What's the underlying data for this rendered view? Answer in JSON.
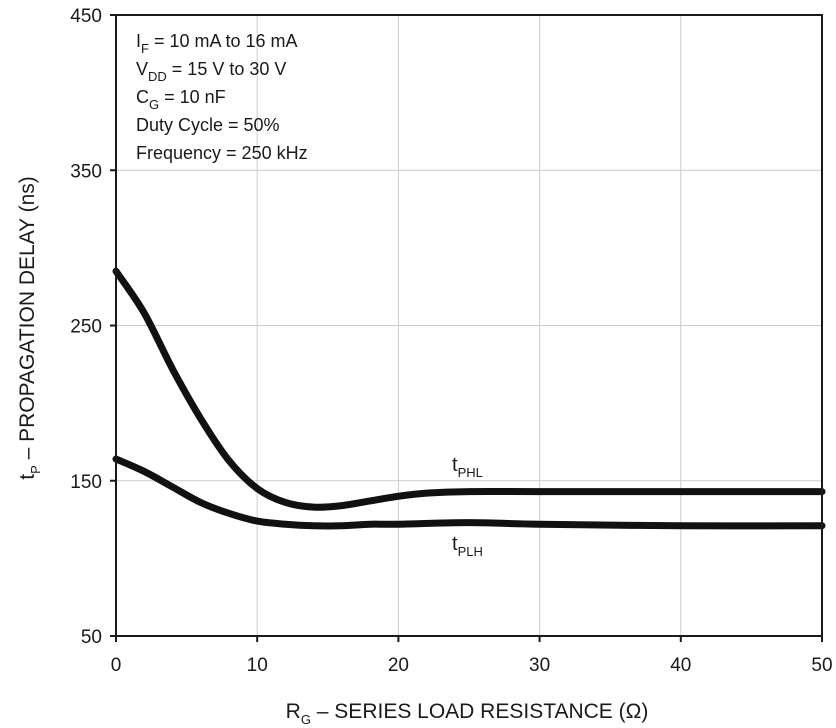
{
  "chart_data": {
    "type": "line",
    "xlabel": {
      "main": "R",
      "sub": "G",
      "rest": " – SERIES LOAD RESISTANCE (Ω)"
    },
    "ylabel": {
      "main": "t",
      "sub": "P",
      "rest": " – PROPAGATION DELAY (ns)"
    },
    "xlim": [
      0,
      50
    ],
    "ylim": [
      50,
      450
    ],
    "x_ticks": [
      "0",
      "10",
      "20",
      "30",
      "40",
      "50"
    ],
    "y_ticks": [
      "450",
      "350",
      "250",
      "150",
      "50"
    ],
    "grid": true,
    "conditions": [
      {
        "pre": "I",
        "sub": "F",
        "post": " = 10 mA to 16 mA"
      },
      {
        "pre": "V",
        "sub": "DD",
        "post": " = 15 V to 30 V"
      },
      {
        "pre": "C",
        "sub": "G",
        "post": " = 10 nF"
      },
      {
        "pre": "Duty Cycle = 50%",
        "sub": "",
        "post": ""
      },
      {
        "pre": "Frequency = 250 kHz",
        "sub": "",
        "post": ""
      }
    ],
    "series": [
      {
        "name": {
          "main": "t",
          "sub": "PHL"
        },
        "x": [
          0,
          2,
          4,
          6,
          8,
          10,
          12,
          14,
          16,
          18,
          20,
          22,
          25,
          30,
          40,
          50
        ],
        "y": [
          285,
          258,
          222,
          190,
          163,
          145,
          136,
          133,
          134,
          137,
          140,
          142,
          143,
          143,
          143,
          143
        ]
      },
      {
        "name": {
          "main": "t",
          "sub": "PLH"
        },
        "x": [
          0,
          2,
          4,
          6,
          8,
          10,
          12,
          14,
          16,
          18,
          20,
          25,
          30,
          40,
          50
        ],
        "y": [
          164,
          156,
          146,
          136,
          129,
          124,
          122,
          121,
          121,
          122,
          122,
          123,
          122,
          121,
          121
        ]
      }
    ],
    "colors": {
      "line": "#111111",
      "grid": "#cccccc",
      "frame": "#1a1a1a"
    }
  }
}
